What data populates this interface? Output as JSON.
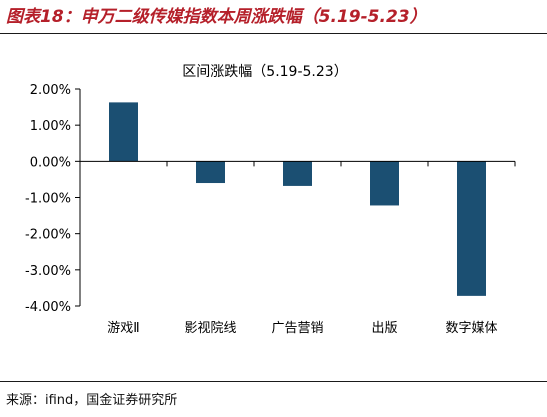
{
  "figure": {
    "label": "图表18：申万二级传媒指数本周涨跌幅（5.19-5.23）",
    "source": "来源：ifind，国金证券研究所"
  },
  "colors": {
    "bar": "#1b4f72",
    "title": "#b5202a",
    "axis": "#000000"
  },
  "chart_data": {
    "type": "bar",
    "title": "区间涨跌幅（5.19-5.23）",
    "xlabel": "",
    "ylabel": "",
    "categories": [
      "游戏Ⅱ",
      "影视院线",
      "广告营销",
      "出版",
      "数字媒体"
    ],
    "values": [
      1.63,
      -0.6,
      -0.68,
      -1.22,
      -3.72
    ],
    "unit": "%",
    "ylim": [
      -4.0,
      2.0
    ],
    "yticks": [
      2.0,
      1.0,
      0.0,
      -1.0,
      -2.0,
      -3.0,
      -4.0
    ],
    "ytick_labels": [
      "2.00%",
      "1.00%",
      "0.00%",
      "-1.00%",
      "-2.00%",
      "-3.00%",
      "-4.00%"
    ],
    "grid": false,
    "legend": "none"
  }
}
